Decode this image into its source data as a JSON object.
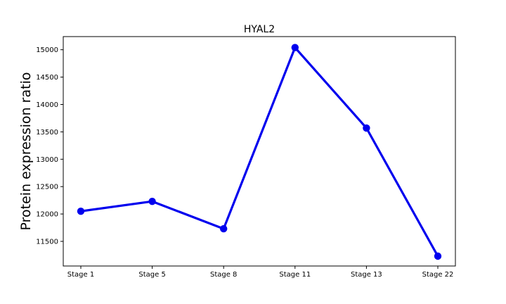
{
  "chart_data": {
    "type": "line",
    "title": "HYAL2",
    "xlabel": "",
    "ylabel": "Protein expression ratio",
    "categories": [
      "Stage 1",
      "Stage 5",
      "Stage 8",
      "Stage 11",
      "Stage 13",
      "Stage 22"
    ],
    "series": [
      {
        "values": [
          12050,
          12230,
          11730,
          15040,
          13570,
          11230
        ]
      }
    ],
    "ylim": [
      11050,
      15240
    ],
    "yticks": [
      11500,
      12000,
      12500,
      13000,
      13500,
      14000,
      14500,
      15000
    ],
    "grid": false,
    "line_color": "#0000ee",
    "marker": "circle"
  }
}
